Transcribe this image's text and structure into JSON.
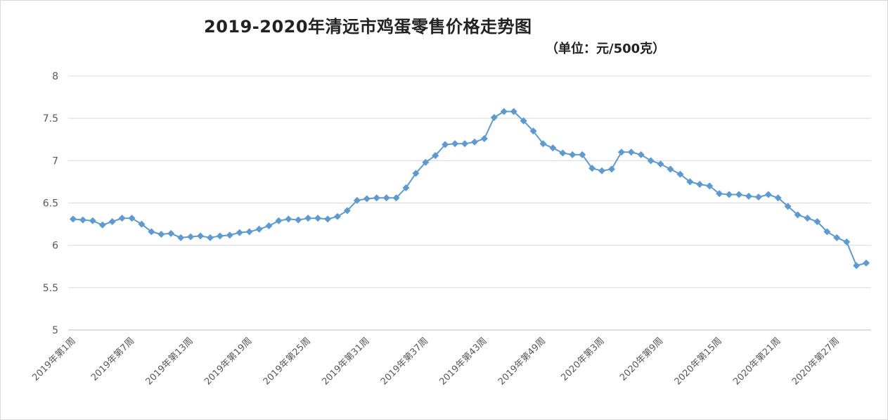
{
  "chart_data": {
    "type": "line",
    "title": "2019-2020年清远市鸡蛋零售价格走势图",
    "subtitle": "（单位：元/500克）",
    "xlabel": "",
    "ylabel": "",
    "ylim": [
      5,
      8
    ],
    "yticks": [
      5,
      5.5,
      6,
      6.5,
      7,
      7.5,
      8
    ],
    "grid": true,
    "legend": "none",
    "color": "#5b9bd5",
    "marker": "diamond",
    "categories": [
      "2019年第1周",
      "2019年第2周",
      "2019年第3周",
      "2019年第4周",
      "2019年第5周",
      "2019年第6周",
      "2019年第7周",
      "2019年第8周",
      "2019年第9周",
      "2019年第10周",
      "2019年第11周",
      "2019年第12周",
      "2019年第13周",
      "2019年第14周",
      "2019年第15周",
      "2019年第16周",
      "2019年第17周",
      "2019年第18周",
      "2019年第19周",
      "2019年第20周",
      "2019年第21周",
      "2019年第22周",
      "2019年第23周",
      "2019年第24周",
      "2019年第25周",
      "2019年第26周",
      "2019年第27周",
      "2019年第28周",
      "2019年第29周",
      "2019年第30周",
      "2019年第31周",
      "2019年第32周",
      "2019年第33周",
      "2019年第34周",
      "2019年第35周",
      "2019年第36周",
      "2019年第37周",
      "2019年第38周",
      "2019年第39周",
      "2019年第40周",
      "2019年第41周",
      "2019年第42周",
      "2019年第43周",
      "2019年第44周",
      "2019年第45周",
      "2019年第46周",
      "2019年第47周",
      "2019年第48周",
      "2019年第49周",
      "2019年第50周",
      "2019年第51周",
      "2019年第52周",
      "2020年第1周",
      "2020年第2周",
      "2020年第3周",
      "2020年第4周",
      "2020年第5周",
      "2020年第6周",
      "2020年第7周",
      "2020年第8周",
      "2020年第9周",
      "2020年第10周",
      "2020年第11周",
      "2020年第12周",
      "2020年第13周",
      "2020年第14周",
      "2020年第15周",
      "2020年第16周",
      "2020年第17周",
      "2020年第18周",
      "2020年第19周",
      "2020年第20周",
      "2020年第21周",
      "2020年第22周",
      "2020年第23周",
      "2020年第24周",
      "2020年第25周",
      "2020年第26周",
      "2020年第27周",
      "2020年第28周",
      "2020年第29周",
      "2020年第30周"
    ],
    "values": [
      6.31,
      6.3,
      6.29,
      6.24,
      6.28,
      6.32,
      6.32,
      6.25,
      6.16,
      6.13,
      6.14,
      6.09,
      6.1,
      6.11,
      6.09,
      6.11,
      6.12,
      6.15,
      6.16,
      6.19,
      6.23,
      6.29,
      6.31,
      6.3,
      6.32,
      6.32,
      6.31,
      6.34,
      6.41,
      6.53,
      6.55,
      6.56,
      6.56,
      6.56,
      6.68,
      6.85,
      6.98,
      7.06,
      7.19,
      7.2,
      7.2,
      7.22,
      7.26,
      7.51,
      7.58,
      7.58,
      7.47,
      7.35,
      7.2,
      7.15,
      7.09,
      7.07,
      7.07,
      6.91,
      6.88,
      6.9,
      7.1,
      7.1,
      7.07,
      7.0,
      6.96,
      6.9,
      6.84,
      6.75,
      6.72,
      6.7,
      6.61,
      6.6,
      6.6,
      6.58,
      6.57,
      6.6,
      6.56,
      6.46,
      6.36,
      6.32,
      6.28,
      6.16,
      6.09,
      6.04,
      5.76,
      5.79
    ],
    "shown_tick_labels": [
      "2019年第1周",
      "2019年第7周",
      "2019年第13周",
      "2019年第19周",
      "2019年第25周",
      "2019年第31周",
      "2019年第37周",
      "2019年第43周",
      "2019年第49周",
      "2020年第3周",
      "2020年第9周",
      "2020年第15周",
      "2020年第21周",
      "2020年第27周"
    ]
  }
}
